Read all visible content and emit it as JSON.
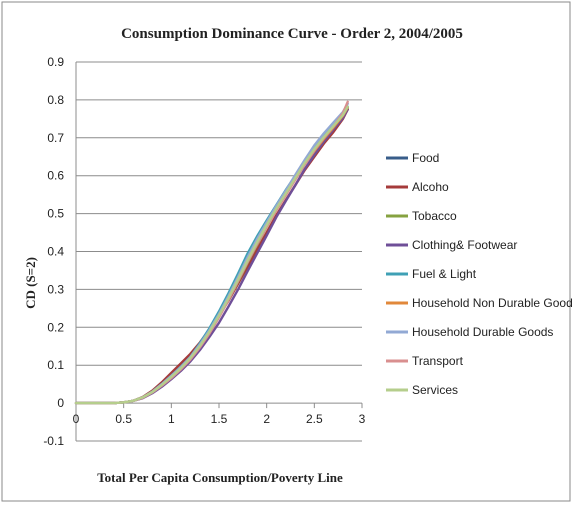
{
  "chart_data": {
    "type": "line",
    "title": "Consumption Dominance Curve - Order 2, 2004/2005",
    "xlabel": "Total Per Capita Consumption/Poverty Line",
    "ylabel": "CD (S=2)",
    "xlim": [
      0,
      3
    ],
    "ylim": [
      -0.1,
      0.9
    ],
    "xticks": [
      "0",
      "0.5",
      "1",
      "1.5",
      "2",
      "2.5",
      "3"
    ],
    "yticks": [
      "-0.1",
      "0",
      "0.1",
      "0.2",
      "0.3",
      "0.4",
      "0.5",
      "0.6",
      "0.7",
      "0.8",
      "0.9"
    ],
    "grid": "horizontal",
    "legend_position": "right",
    "x": [
      0,
      0.2,
      0.4,
      0.5,
      0.6,
      0.7,
      0.8,
      0.9,
      1.0,
      1.1,
      1.2,
      1.3,
      1.4,
      1.5,
      1.6,
      1.7,
      1.8,
      1.9,
      2.0,
      2.1,
      2.2,
      2.3,
      2.4,
      2.5,
      2.6,
      2.7,
      2.8,
      2.85
    ],
    "series": [
      {
        "name": "Food",
        "color": "#385d8a",
        "values": [
          0,
          0,
          0,
          0.002,
          0.006,
          0.015,
          0.03,
          0.05,
          0.07,
          0.095,
          0.12,
          0.155,
          0.19,
          0.23,
          0.275,
          0.325,
          0.375,
          0.425,
          0.47,
          0.515,
          0.555,
          0.595,
          0.635,
          0.67,
          0.7,
          0.725,
          0.755,
          0.775
        ]
      },
      {
        "name": "Alcoho",
        "color": "#a53b3b",
        "values": [
          0,
          0,
          0,
          0.002,
          0.006,
          0.016,
          0.033,
          0.055,
          0.08,
          0.105,
          0.13,
          0.16,
          0.195,
          0.232,
          0.27,
          0.315,
          0.36,
          0.405,
          0.45,
          0.495,
          0.535,
          0.575,
          0.615,
          0.65,
          0.685,
          0.715,
          0.75,
          0.775
        ]
      },
      {
        "name": "Tobacco",
        "color": "#86a240",
        "values": [
          0,
          0,
          0,
          0.002,
          0.006,
          0.014,
          0.028,
          0.047,
          0.068,
          0.092,
          0.118,
          0.15,
          0.187,
          0.228,
          0.272,
          0.32,
          0.37,
          0.418,
          0.465,
          0.51,
          0.55,
          0.592,
          0.632,
          0.668,
          0.7,
          0.728,
          0.758,
          0.78
        ]
      },
      {
        "name": "Clothing& Footwear",
        "color": "#6f4f98",
        "values": [
          0,
          0,
          0,
          0.002,
          0.006,
          0.013,
          0.026,
          0.043,
          0.063,
          0.085,
          0.11,
          0.14,
          0.175,
          0.212,
          0.255,
          0.3,
          0.348,
          0.395,
          0.442,
          0.49,
          0.533,
          0.575,
          0.618,
          0.655,
          0.69,
          0.722,
          0.752,
          0.775
        ]
      },
      {
        "name": "Fuel & Light",
        "color": "#3fa0b5",
        "values": [
          0,
          0,
          0,
          0.002,
          0.006,
          0.015,
          0.03,
          0.05,
          0.072,
          0.096,
          0.122,
          0.158,
          0.198,
          0.242,
          0.29,
          0.342,
          0.395,
          0.44,
          0.482,
          0.522,
          0.562,
          0.6,
          0.64,
          0.675,
          0.705,
          0.732,
          0.762,
          0.782
        ]
      },
      {
        "name": "Household Non Durable Goods",
        "color": "#e1883b",
        "values": [
          0,
          0,
          0,
          0.002,
          0.006,
          0.015,
          0.03,
          0.049,
          0.07,
          0.093,
          0.12,
          0.152,
          0.19,
          0.232,
          0.278,
          0.328,
          0.378,
          0.426,
          0.47,
          0.512,
          0.55,
          0.59,
          0.63,
          0.665,
          0.697,
          0.727,
          0.758,
          0.78
        ]
      },
      {
        "name": "Household Durable Goods",
        "color": "#92a9d4",
        "values": [
          0,
          0,
          0,
          0.002,
          0.006,
          0.015,
          0.03,
          0.05,
          0.072,
          0.095,
          0.122,
          0.155,
          0.193,
          0.235,
          0.282,
          0.333,
          0.385,
          0.433,
          0.477,
          0.52,
          0.56,
          0.602,
          0.642,
          0.68,
          0.712,
          0.74,
          0.768,
          0.79
        ]
      },
      {
        "name": "Transport",
        "color": "#d98f8f",
        "values": [
          0,
          0,
          0,
          0.002,
          0.006,
          0.014,
          0.028,
          0.046,
          0.066,
          0.089,
          0.115,
          0.147,
          0.184,
          0.226,
          0.272,
          0.322,
          0.372,
          0.42,
          0.465,
          0.508,
          0.548,
          0.59,
          0.63,
          0.667,
          0.7,
          0.73,
          0.765,
          0.795
        ]
      },
      {
        "name": "Services",
        "color": "#b5ce8c",
        "values": [
          0,
          0,
          0,
          0.002,
          0.006,
          0.015,
          0.029,
          0.048,
          0.069,
          0.092,
          0.119,
          0.151,
          0.189,
          0.231,
          0.277,
          0.327,
          0.377,
          0.425,
          0.47,
          0.513,
          0.553,
          0.594,
          0.634,
          0.67,
          0.702,
          0.731,
          0.76,
          0.782
        ]
      }
    ]
  }
}
